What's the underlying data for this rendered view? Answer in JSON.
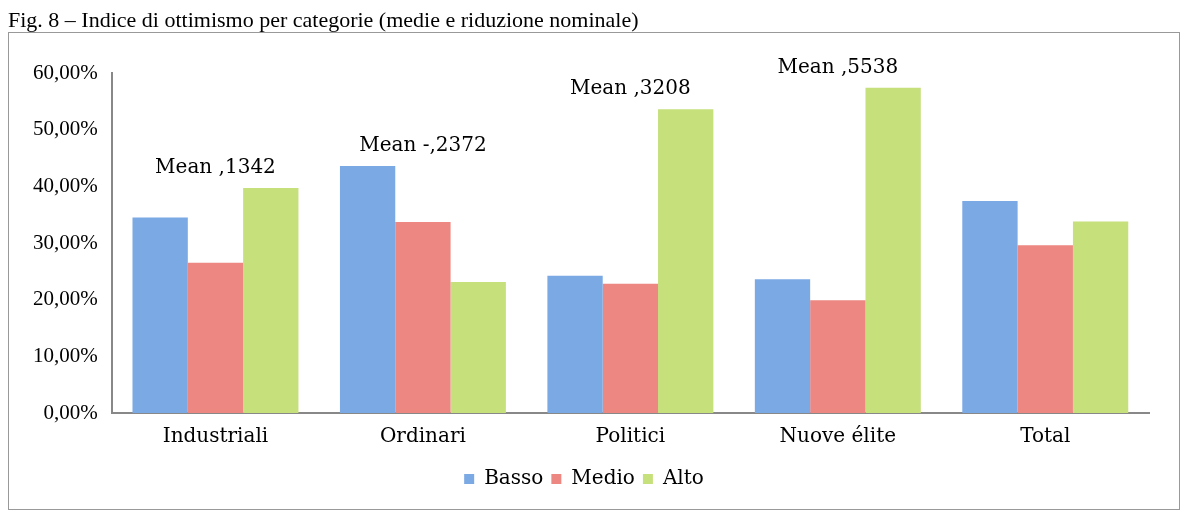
{
  "chart_data": {
    "type": "bar",
    "title": "Fig. 8 – Indice di ottimismo per categorie (medie e riduzione nominale)",
    "categories": [
      "Industriali",
      "Ordinari",
      "Politici",
      "Nuove élite",
      "Total"
    ],
    "series": [
      {
        "name": "Basso",
        "color": "#7aa9e4",
        "values": [
          34.5,
          43.6,
          24.2,
          23.6,
          37.4
        ]
      },
      {
        "name": "Medio",
        "color": "#ec8781",
        "values": [
          26.5,
          33.7,
          22.8,
          19.9,
          29.6
        ]
      },
      {
        "name": "Alto",
        "color": "#c6e07c",
        "values": [
          39.7,
          23.1,
          53.6,
          57.4,
          33.8
        ]
      }
    ],
    "ylim": [
      0,
      60
    ],
    "yticks": [
      {
        "value": 0,
        "label": "0,00%"
      },
      {
        "value": 10,
        "label": "10,00%"
      },
      {
        "value": 20,
        "label": "20,00%"
      },
      {
        "value": 30,
        "label": "30,00%"
      },
      {
        "value": 40,
        "label": "40,00%"
      },
      {
        "value": 50,
        "label": "50,00%"
      },
      {
        "value": 60,
        "label": "60,00%"
      }
    ],
    "grid": false,
    "legend": "bottom",
    "annotations": [
      "Mean ,1342",
      "Mean -,2372",
      "Mean ,3208",
      "Mean ,5538"
    ]
  }
}
